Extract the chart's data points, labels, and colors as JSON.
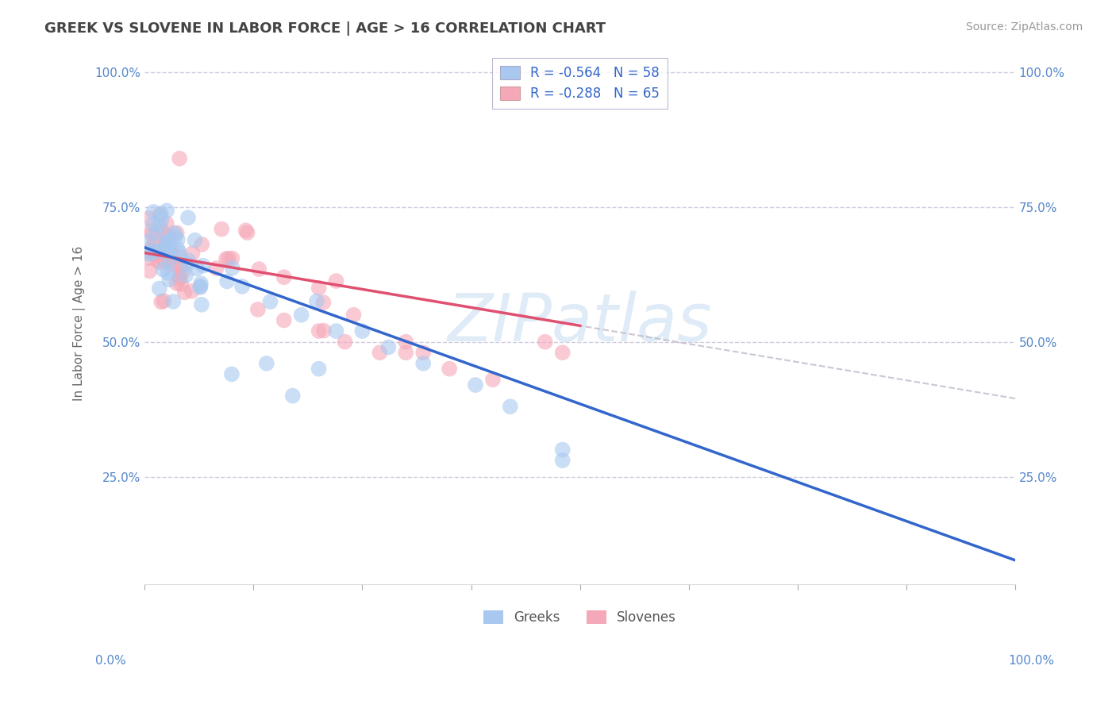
{
  "title": "GREEK VS SLOVENE IN LABOR FORCE | AGE > 16 CORRELATION CHART",
  "source": "Source: ZipAtlas.com",
  "ylabel": "In Labor Force | Age > 16",
  "xlim": [
    0,
    1
  ],
  "ylim": [
    0.05,
    1.02
  ],
  "ytick_vals": [
    0.25,
    0.5,
    0.75,
    1.0
  ],
  "ytick_labels": [
    "25.0%",
    "50.0%",
    "75.0%",
    "100.0%"
  ],
  "xtick_vals": [
    0.0,
    0.125,
    0.25,
    0.375,
    0.5,
    0.625,
    0.75,
    0.875,
    1.0
  ],
  "legend_r1": "R = -0.564",
  "legend_n1": "N = 58",
  "legend_r2": "R = -0.288",
  "legend_n2": "N = 65",
  "color_blue": "#a8c8f0",
  "color_pink": "#f5a8b8",
  "color_blue_line": "#3366cc",
  "color_pink_line": "#e05070",
  "color_gray_dash": "#c0b8c8",
  "color_label": "#5588cc",
  "watermark_color": "#c0d8ee",
  "background_color": "#ffffff",
  "grid_color": "#d0cce0",
  "trend_blue_intercept": 0.675,
  "trend_blue_slope": -0.58,
  "trend_pink_intercept": 0.665,
  "trend_pink_slope": -0.27
}
